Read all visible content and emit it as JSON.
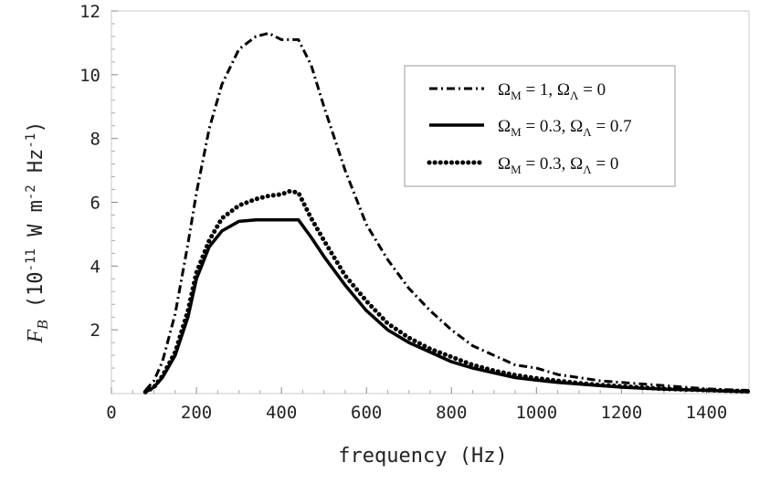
{
  "chart_data": {
    "type": "line",
    "xlabel": "frequency (Hz)",
    "ylabel": {
      "symbol": "F",
      "subscript": "B",
      "units_prefix": " (10",
      "units_exp": "-11",
      "units_mid": " W m",
      "units_exp2": "-2",
      "units_mid2": " Hz",
      "units_exp3": "-1",
      "units_suffix": ")"
    },
    "xlim": [
      0,
      1500
    ],
    "ylim": [
      0,
      12
    ],
    "x_ticks": [
      0,
      200,
      400,
      600,
      800,
      1000,
      1200,
      1400
    ],
    "y_ticks": [
      2,
      4,
      6,
      8,
      10,
      12
    ],
    "grid": false,
    "legend_position": "top-right",
    "series": [
      {
        "name": "Ω_M = 1, Ω_Λ = 0",
        "legend": {
          "a": "Ω",
          "a_sub": "M",
          "a_val": " = 1, ",
          "b": "Ω",
          "b_sub": "Λ",
          "b_val": " = 0"
        },
        "style": "dashdot",
        "x": [
          80,
          100,
          120,
          150,
          180,
          200,
          230,
          260,
          300,
          340,
          370,
          400,
          440,
          470,
          500,
          550,
          600,
          650,
          700,
          750,
          800,
          850,
          900,
          950,
          1000,
          1050,
          1100,
          1150,
          1200,
          1250,
          1300,
          1350,
          1400,
          1450,
          1500
        ],
        "y": [
          0.1,
          0.4,
          1.0,
          2.5,
          4.7,
          6.3,
          8.3,
          9.7,
          10.8,
          11.2,
          11.3,
          11.1,
          11.1,
          10.3,
          9.0,
          7.0,
          5.3,
          4.2,
          3.3,
          2.6,
          2.0,
          1.5,
          1.2,
          0.9,
          0.8,
          0.6,
          0.5,
          0.4,
          0.35,
          0.3,
          0.25,
          0.2,
          0.15,
          0.12,
          0.1
        ]
      },
      {
        "name": "Ω_M = 0.3, Ω_Λ = 0.7",
        "legend": {
          "a": "Ω",
          "a_sub": "M",
          "a_val": " = 0.3, ",
          "b": "Ω",
          "b_sub": "Λ",
          "b_val": " = 0.7"
        },
        "style": "solid",
        "x": [
          80,
          100,
          120,
          150,
          180,
          200,
          230,
          260,
          300,
          340,
          370,
          400,
          440,
          470,
          500,
          550,
          600,
          650,
          700,
          750,
          800,
          850,
          900,
          950,
          1000,
          1050,
          1100,
          1150,
          1200,
          1250,
          1300,
          1350,
          1400,
          1450,
          1500
        ],
        "y": [
          0.05,
          0.2,
          0.5,
          1.2,
          2.4,
          3.6,
          4.6,
          5.1,
          5.4,
          5.45,
          5.45,
          5.45,
          5.45,
          4.9,
          4.3,
          3.4,
          2.6,
          2.0,
          1.6,
          1.3,
          1.0,
          0.8,
          0.65,
          0.5,
          0.42,
          0.35,
          0.3,
          0.25,
          0.2,
          0.17,
          0.14,
          0.12,
          0.1,
          0.08,
          0.06
        ]
      },
      {
        "name": "Ω_M = 0.3, Ω_Λ = 0",
        "legend": {
          "a": "Ω",
          "a_sub": "M",
          "a_val": " = 0.3, ",
          "b": "Ω",
          "b_sub": "Λ",
          "b_val": " = 0"
        },
        "style": "dotted",
        "x": [
          80,
          100,
          120,
          150,
          180,
          200,
          230,
          260,
          300,
          340,
          370,
          400,
          420,
          440,
          470,
          500,
          550,
          600,
          650,
          700,
          750,
          800,
          850,
          900,
          950,
          1000,
          1050,
          1100,
          1150,
          1200,
          1250,
          1300,
          1350,
          1400,
          1450,
          1500
        ],
        "y": [
          0.05,
          0.2,
          0.55,
          1.3,
          2.6,
          3.8,
          4.8,
          5.5,
          5.9,
          6.1,
          6.2,
          6.25,
          6.35,
          6.3,
          5.5,
          4.8,
          3.7,
          2.9,
          2.2,
          1.75,
          1.4,
          1.15,
          0.9,
          0.72,
          0.58,
          0.48,
          0.4,
          0.33,
          0.27,
          0.23,
          0.19,
          0.15,
          0.13,
          0.11,
          0.09,
          0.07
        ]
      }
    ]
  }
}
